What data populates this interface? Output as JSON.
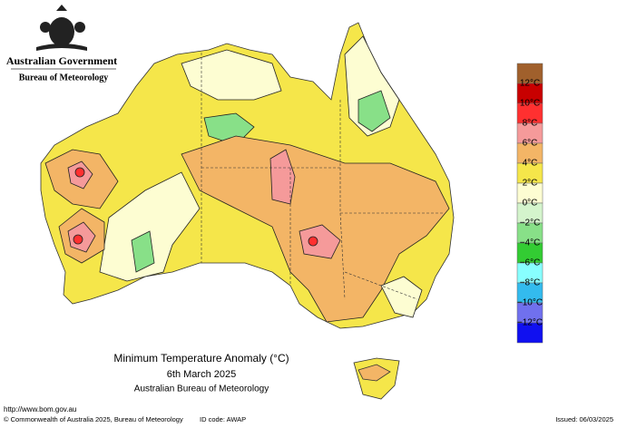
{
  "header": {
    "agency": "Australian Government",
    "bureau": "Bureau of Meteorology"
  },
  "map": {
    "title": "Minimum Temperature Anomaly (°C)",
    "date": "6th March 2025",
    "source": "Australian Bureau of Meteorology"
  },
  "legend": {
    "labels": [
      "12°C",
      "10°C",
      "8°C",
      "6°C",
      "4°C",
      "2°C",
      "0°C",
      "−2°C",
      "−4°C",
      "−6°C",
      "−8°C",
      "−10°C",
      "−12°C"
    ],
    "colors": [
      "#a0602c",
      "#c80000",
      "#ff3030",
      "#f59a9a",
      "#f3b566",
      "#f5e64a",
      "#fdfdd2",
      "#d4f4cc",
      "#88e088",
      "#33cc33",
      "#88ffff",
      "#33bbee",
      "#7070ee",
      "#1010f0"
    ]
  },
  "footer": {
    "url": "http://www.bom.gov.au",
    "copyright": "© Commonwealth of Australia 2025, Bureau of Meteorology",
    "id_code": "ID code: AWAP",
    "issued": "Issued: 06/03/2025"
  }
}
